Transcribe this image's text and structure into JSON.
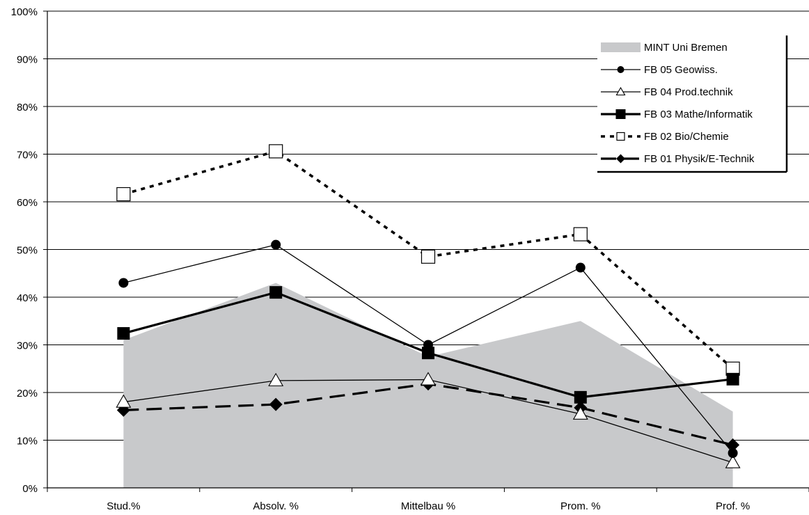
{
  "chart_data": {
    "type": "line",
    "categories": [
      "Stud.%",
      "Absolv. %",
      "Mittelbau %",
      "Prom. %",
      "Prof. %"
    ],
    "ylim": [
      0,
      100
    ],
    "yticks": [
      "0%",
      "10%",
      "20%",
      "30%",
      "40%",
      "50%",
      "60%",
      "70%",
      "80%",
      "90%",
      "100%"
    ],
    "grid": true,
    "legend_position": "top-right",
    "series": [
      {
        "name": "MINT Uni Bremen",
        "style": "area",
        "color": "#c8c9cb",
        "values": [
          31,
          43,
          27.5,
          35,
          16
        ]
      },
      {
        "name": "FB 05 Geowiss.",
        "style": "thin-solid",
        "marker": "circle",
        "values": [
          43,
          51,
          30,
          46.2,
          7.3
        ]
      },
      {
        "name": "FB 04 Prod.technik",
        "style": "thin-solid",
        "marker": "triangle-open",
        "values": [
          18,
          22.5,
          22.7,
          15.5,
          5.3
        ]
      },
      {
        "name": "FB 03 Mathe/Informatik",
        "style": "thick-solid",
        "marker": "square",
        "values": [
          32.4,
          41,
          28.3,
          19,
          22.8
        ]
      },
      {
        "name": "FB 02 Bio/Chemie",
        "style": "dotted",
        "marker": "square-open",
        "values": [
          61.6,
          70.6,
          48.5,
          53.2,
          25
        ]
      },
      {
        "name": "FB 01 Physik/E-Technik",
        "style": "dashed",
        "marker": "diamond",
        "values": [
          16.3,
          17.5,
          21.8,
          16.8,
          9
        ]
      }
    ]
  }
}
